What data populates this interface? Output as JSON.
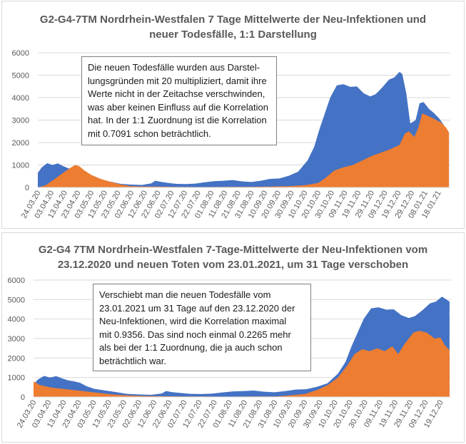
{
  "chart_data": [
    {
      "type": "area",
      "title_lines": [
        "G2-G4-7TM Nordrhein-Westfalen 7 Tage Mittelwerte der Neu-Infektionen und",
        "neuer Todesfälle, 1:1 Darstellung"
      ],
      "ylim": [
        0,
        6000
      ],
      "yticks": [
        0,
        1000,
        2000,
        3000,
        4000,
        5000,
        6000
      ],
      "xlim": [
        "2020-03-24",
        "2021-01-27"
      ],
      "xtick_labels": [
        "24.03.20",
        "03.04.20",
        "13.04.20",
        "23.04.20",
        "03.05.20",
        "13.05.20",
        "23.05.20",
        "02.06.20",
        "12.06.20",
        "22.06.20",
        "02.07.20",
        "12.07.20",
        "22.07.20",
        "01.08.20",
        "11.08.20",
        "21.08.20",
        "31.08.20",
        "10.09.20",
        "20.09.20",
        "30.09.20",
        "10.10.20",
        "20.10.20",
        "30.10.20",
        "09.11.20",
        "19.11.20",
        "29.11.20",
        "09.12.20",
        "19.12.20",
        "29.12.20",
        "08.01.21",
        "18.01.21"
      ],
      "note": "Die neuen Todesfälle wurden aus Darstel-\nlungsgründen mit 20 multipliziert, damit ihre\nWerte nicht in der Zeitachse verschwinden,\nwas aber keinen Einfluss auf die Korrelation\nhat. In der 1:1 Zuordnung ist die Korrelation\nmit 0.7091 schon beträchtlich.",
      "series": [
        {
          "color": "#4472c4",
          "points": [
            [
              "2020-03-24",
              650
            ],
            [
              "2020-03-27",
              900
            ],
            [
              "2020-03-31",
              1080
            ],
            [
              "2020-04-04",
              1000
            ],
            [
              "2020-04-08",
              1070
            ],
            [
              "2020-04-12",
              950
            ],
            [
              "2020-04-16",
              850
            ],
            [
              "2020-04-20",
              800
            ],
            [
              "2020-04-24",
              720
            ],
            [
              "2020-04-28",
              560
            ],
            [
              "2020-05-03",
              420
            ],
            [
              "2020-05-10",
              340
            ],
            [
              "2020-05-18",
              250
            ],
            [
              "2020-05-25",
              160
            ],
            [
              "2020-06-01",
              130
            ],
            [
              "2020-06-10",
              110
            ],
            [
              "2020-06-17",
              180
            ],
            [
              "2020-06-20",
              300
            ],
            [
              "2020-06-24",
              250
            ],
            [
              "2020-06-30",
              200
            ],
            [
              "2020-07-06",
              160
            ],
            [
              "2020-07-13",
              150
            ],
            [
              "2020-07-20",
              170
            ],
            [
              "2020-07-27",
              230
            ],
            [
              "2020-08-03",
              280
            ],
            [
              "2020-08-10",
              300
            ],
            [
              "2020-08-17",
              330
            ],
            [
              "2020-08-24",
              270
            ],
            [
              "2020-08-31",
              240
            ],
            [
              "2020-09-07",
              300
            ],
            [
              "2020-09-14",
              380
            ],
            [
              "2020-09-21",
              400
            ],
            [
              "2020-09-28",
              520
            ],
            [
              "2020-10-05",
              700
            ],
            [
              "2020-10-12",
              1200
            ],
            [
              "2020-10-17",
              1800
            ],
            [
              "2020-10-21",
              2600
            ],
            [
              "2020-10-25",
              3300
            ],
            [
              "2020-10-29",
              4000
            ],
            [
              "2020-11-03",
              4550
            ],
            [
              "2020-11-08",
              4600
            ],
            [
              "2020-11-13",
              4480
            ],
            [
              "2020-11-18",
              4500
            ],
            [
              "2020-11-23",
              4200
            ],
            [
              "2020-11-28",
              4050
            ],
            [
              "2020-12-02",
              4150
            ],
            [
              "2020-12-07",
              4450
            ],
            [
              "2020-12-12",
              4800
            ],
            [
              "2020-12-16",
              4900
            ],
            [
              "2020-12-20",
              5150
            ],
            [
              "2020-12-22",
              5050
            ],
            [
              "2020-12-25",
              4200
            ],
            [
              "2020-12-28",
              2850
            ],
            [
              "2021-01-01",
              3000
            ],
            [
              "2021-01-04",
              3750
            ],
            [
              "2021-01-07",
              3800
            ],
            [
              "2021-01-11",
              3500
            ],
            [
              "2021-01-15",
              3300
            ],
            [
              "2021-01-19",
              3050
            ],
            [
              "2021-01-23",
              2700
            ],
            [
              "2021-01-26",
              2400
            ]
          ]
        },
        {
          "color": "#ed7d31",
          "points": [
            [
              "2020-03-24",
              0
            ],
            [
              "2020-03-30",
              100
            ],
            [
              "2020-04-05",
              350
            ],
            [
              "2020-04-12",
              650
            ],
            [
              "2020-04-18",
              900
            ],
            [
              "2020-04-21",
              1000
            ],
            [
              "2020-04-24",
              950
            ],
            [
              "2020-04-28",
              750
            ],
            [
              "2020-05-03",
              560
            ],
            [
              "2020-05-10",
              380
            ],
            [
              "2020-05-18",
              240
            ],
            [
              "2020-05-25",
              130
            ],
            [
              "2020-06-01",
              60
            ],
            [
              "2020-06-10",
              40
            ],
            [
              "2020-06-20",
              40
            ],
            [
              "2020-07-01",
              30
            ],
            [
              "2020-07-15",
              20
            ],
            [
              "2020-08-01",
              20
            ],
            [
              "2020-08-15",
              30
            ],
            [
              "2020-09-01",
              30
            ],
            [
              "2020-09-15",
              40
            ],
            [
              "2020-09-30",
              60
            ],
            [
              "2020-10-10",
              100
            ],
            [
              "2020-10-20",
              200
            ],
            [
              "2020-10-25",
              400
            ],
            [
              "2020-11-01",
              750
            ],
            [
              "2020-11-08",
              900
            ],
            [
              "2020-11-15",
              1000
            ],
            [
              "2020-11-22",
              1200
            ],
            [
              "2020-11-29",
              1400
            ],
            [
              "2020-12-06",
              1550
            ],
            [
              "2020-12-13",
              1700
            ],
            [
              "2020-12-20",
              1900
            ],
            [
              "2020-12-24",
              2400
            ],
            [
              "2020-12-27",
              2500
            ],
            [
              "2020-12-31",
              2250
            ],
            [
              "2021-01-03",
              2650
            ],
            [
              "2021-01-06",
              3300
            ],
            [
              "2021-01-10",
              3200
            ],
            [
              "2021-01-15",
              3050
            ],
            [
              "2021-01-20",
              2900
            ],
            [
              "2021-01-24",
              2650
            ],
            [
              "2021-01-26",
              2450
            ]
          ]
        }
      ]
    },
    {
      "type": "area",
      "title_lines": [
        "G2-G4 7TM Nordrhein-Westfalen 7-Tage-Mittelwerte der Neu-Infektionen vom",
        "23.12.2020 und neuen Toten vom 23.01.2021, um 31 Tage verschoben"
      ],
      "ylim": [
        0,
        6000
      ],
      "yticks": [
        0,
        1000,
        2000,
        3000,
        4000,
        5000,
        6000
      ],
      "xlim": [
        "2020-03-24",
        "2020-12-26"
      ],
      "xtick_labels": [
        "24.03.20",
        "03.04.20",
        "13.04.20",
        "23.04.20",
        "03.05.20",
        "13.05.20",
        "23.05.20",
        "02.06.20",
        "12.06.20",
        "22.06.20",
        "02.07.20",
        "12.07.20",
        "22.07.20",
        "01.08.20",
        "11.08.20",
        "21.08.20",
        "31.08.20",
        "10.09.20",
        "20.09.20",
        "30.09.20",
        "10.10.20",
        "20.10.20",
        "30.10.20",
        "09.11.20",
        "19.11.20",
        "29.11.20",
        "09.12.20",
        "19.12.20"
      ],
      "note": "Verschiebt man die neuen Todesfälle vom\n23.01.2021 um 31 Tage auf den 23.12.2020 der\nNeu-Infektionen, wird die Korrelation maximal\nmit 0.9356. Das sind noch einmal 0.2265 mehr\nals bei der 1:1 Zuordnung, die ja auch schon\nbeträchtlich war.",
      "series": [
        {
          "color": "#4472c4",
          "points": [
            [
              "2020-03-24",
              650
            ],
            [
              "2020-03-27",
              900
            ],
            [
              "2020-03-31",
              1080
            ],
            [
              "2020-04-04",
              1000
            ],
            [
              "2020-04-08",
              1070
            ],
            [
              "2020-04-12",
              950
            ],
            [
              "2020-04-16",
              850
            ],
            [
              "2020-04-20",
              800
            ],
            [
              "2020-04-24",
              720
            ],
            [
              "2020-04-28",
              560
            ],
            [
              "2020-05-03",
              420
            ],
            [
              "2020-05-10",
              340
            ],
            [
              "2020-05-18",
              250
            ],
            [
              "2020-05-25",
              160
            ],
            [
              "2020-06-01",
              130
            ],
            [
              "2020-06-10",
              110
            ],
            [
              "2020-06-17",
              180
            ],
            [
              "2020-06-20",
              300
            ],
            [
              "2020-06-24",
              250
            ],
            [
              "2020-06-30",
              200
            ],
            [
              "2020-07-06",
              160
            ],
            [
              "2020-07-13",
              150
            ],
            [
              "2020-07-20",
              170
            ],
            [
              "2020-07-27",
              230
            ],
            [
              "2020-08-03",
              280
            ],
            [
              "2020-08-10",
              300
            ],
            [
              "2020-08-17",
              330
            ],
            [
              "2020-08-24",
              270
            ],
            [
              "2020-08-31",
              240
            ],
            [
              "2020-09-07",
              300
            ],
            [
              "2020-09-14",
              380
            ],
            [
              "2020-09-21",
              400
            ],
            [
              "2020-09-28",
              520
            ],
            [
              "2020-10-05",
              700
            ],
            [
              "2020-10-12",
              1200
            ],
            [
              "2020-10-17",
              1800
            ],
            [
              "2020-10-21",
              2600
            ],
            [
              "2020-10-25",
              3300
            ],
            [
              "2020-10-29",
              4000
            ],
            [
              "2020-11-03",
              4550
            ],
            [
              "2020-11-08",
              4600
            ],
            [
              "2020-11-13",
              4480
            ],
            [
              "2020-11-18",
              4500
            ],
            [
              "2020-11-23",
              4200
            ],
            [
              "2020-11-28",
              4050
            ],
            [
              "2020-12-02",
              4150
            ],
            [
              "2020-12-07",
              4450
            ],
            [
              "2020-12-12",
              4800
            ],
            [
              "2020-12-16",
              4900
            ],
            [
              "2020-12-20",
              5150
            ],
            [
              "2020-12-22",
              5050
            ],
            [
              "2020-12-25",
              4900
            ]
          ]
        },
        {
          "color": "#ed7d31",
          "points": [
            [
              "2020-03-24",
              800
            ],
            [
              "2020-03-28",
              620
            ],
            [
              "2020-04-05",
              480
            ],
            [
              "2020-04-12",
              420
            ],
            [
              "2020-04-20",
              350
            ],
            [
              "2020-04-28",
              280
            ],
            [
              "2020-05-05",
              220
            ],
            [
              "2020-05-15",
              130
            ],
            [
              "2020-05-25",
              80
            ],
            [
              "2020-06-05",
              50
            ],
            [
              "2020-06-15",
              40
            ],
            [
              "2020-07-01",
              30
            ],
            [
              "2020-07-15",
              25
            ],
            [
              "2020-08-01",
              20
            ],
            [
              "2020-08-15",
              30
            ],
            [
              "2020-09-01",
              30
            ],
            [
              "2020-09-10",
              80
            ],
            [
              "2020-09-20",
              150
            ],
            [
              "2020-09-28",
              350
            ],
            [
              "2020-10-05",
              600
            ],
            [
              "2020-10-12",
              1000
            ],
            [
              "2020-10-18",
              1600
            ],
            [
              "2020-10-23",
              2200
            ],
            [
              "2020-10-28",
              2450
            ],
            [
              "2020-11-02",
              2350
            ],
            [
              "2020-11-07",
              2500
            ],
            [
              "2020-11-12",
              2350
            ],
            [
              "2020-11-17",
              2600
            ],
            [
              "2020-11-21",
              2200
            ],
            [
              "2020-11-25",
              2700
            ],
            [
              "2020-12-01",
              3300
            ],
            [
              "2020-12-05",
              3400
            ],
            [
              "2020-12-10",
              3300
            ],
            [
              "2020-12-15",
              3000
            ],
            [
              "2020-12-19",
              3050
            ],
            [
              "2020-12-22",
              2650
            ],
            [
              "2020-12-25",
              2400
            ]
          ]
        }
      ]
    }
  ]
}
